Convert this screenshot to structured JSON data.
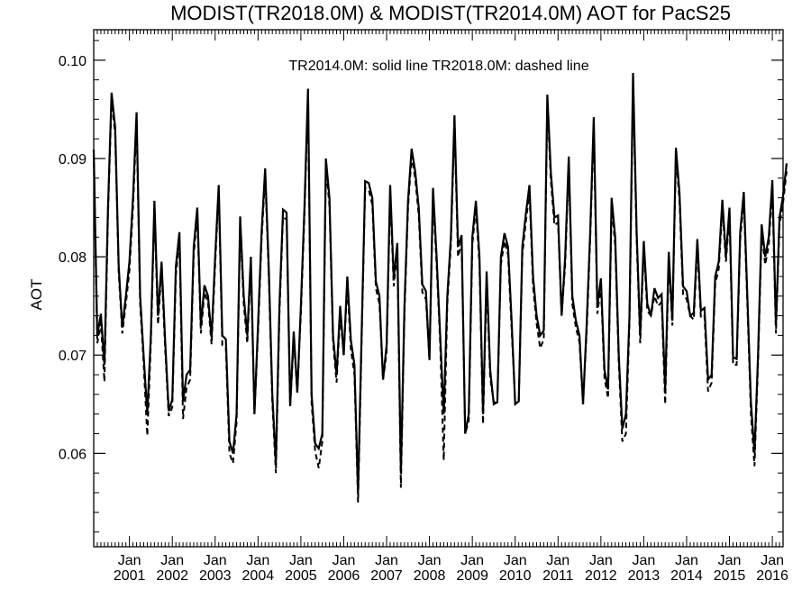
{
  "chart_data": {
    "type": "line",
    "title": "MODIST(TR2018.0M) & MODIST(TR2014.0M)  AOT for PacS25",
    "annotation": "TR2014.0M: solid line   TR2018.0M: dashed line",
    "xlabel": "",
    "ylabel": "AOT",
    "xlim": [
      "2000-03",
      "2016-04"
    ],
    "ylim": [
      0.0505,
      0.1031
    ],
    "yticks": [
      0.06,
      0.07,
      0.08,
      0.09,
      0.1
    ],
    "ytick_labels": [
      "0.06",
      "0.07",
      "0.08",
      "0.09",
      "0.10"
    ],
    "xtick_months": [
      "Jan",
      "Jan",
      "Jan",
      "Jan",
      "Jan",
      "Jan",
      "Jan",
      "Jan",
      "Jan",
      "Jan",
      "Jan",
      "Jan",
      "Jan",
      "Jan",
      "Jan",
      "Jan"
    ],
    "xtick_years": [
      "2001",
      "2002",
      "2003",
      "2004",
      "2005",
      "2006",
      "2007",
      "2008",
      "2009",
      "2010",
      "2011",
      "2012",
      "2013",
      "2014",
      "2015",
      "2016"
    ],
    "grid": false,
    "x_start": "2000-03",
    "series": [
      {
        "name": "TR2014.0M",
        "style": "solid",
        "color": "#000000",
        "values": [
          0.0909,
          0.072,
          0.0742,
          0.069,
          0.085,
          0.0967,
          0.0932,
          0.079,
          0.0728,
          0.076,
          0.0795,
          0.086,
          0.0947,
          0.076,
          0.0698,
          0.064,
          0.072,
          0.0857,
          0.074,
          0.0795,
          0.0715,
          0.0643,
          0.0655,
          0.079,
          0.0825,
          0.0653,
          0.068,
          0.0685,
          0.081,
          0.085,
          0.073,
          0.0771,
          0.076,
          0.0718,
          0.08,
          0.0873,
          0.072,
          0.0716,
          0.0612,
          0.06,
          0.064,
          0.0841,
          0.076,
          0.072,
          0.08,
          0.064,
          0.073,
          0.0825,
          0.089,
          0.079,
          0.066,
          0.059,
          0.075,
          0.0848,
          0.0845,
          0.0648,
          0.0724,
          0.0662,
          0.075,
          0.085,
          0.0971,
          0.066,
          0.061,
          0.0605,
          0.062,
          0.09,
          0.086,
          0.072,
          0.068,
          0.075,
          0.07,
          0.078,
          0.0715,
          0.069,
          0.056,
          0.072,
          0.0877,
          0.0875,
          0.086,
          0.0775,
          0.076,
          0.0675,
          0.071,
          0.0873,
          0.0778,
          0.0814,
          0.058,
          0.075,
          0.0857,
          0.091,
          0.0887,
          0.085,
          0.0772,
          0.0765,
          0.0695,
          0.087,
          0.08,
          0.072,
          0.064,
          0.076,
          0.082,
          0.0944,
          0.081,
          0.0822,
          0.062,
          0.064,
          0.082,
          0.0857,
          0.08,
          0.064,
          0.0785,
          0.0685,
          0.065,
          0.0652,
          0.08,
          0.0824,
          0.081,
          0.0735,
          0.065,
          0.0653,
          0.081,
          0.0844,
          0.0873,
          0.078,
          0.074,
          0.072,
          0.0725,
          0.0965,
          0.0885,
          0.084,
          0.0842,
          0.074,
          0.08,
          0.0902,
          0.076,
          0.0735,
          0.072,
          0.065,
          0.073,
          0.0825,
          0.0942,
          0.075,
          0.0778,
          0.0685,
          0.0665,
          0.086,
          0.082,
          0.07,
          0.0625,
          0.064,
          0.074,
          0.0987,
          0.0826,
          0.072,
          0.0816,
          0.0752,
          0.074,
          0.0768,
          0.0758,
          0.0762,
          0.0665,
          0.0805,
          0.0735,
          0.0911,
          0.0865,
          0.077,
          0.0765,
          0.074,
          0.0743,
          0.0818,
          0.0745,
          0.0748,
          0.0675,
          0.068,
          0.078,
          0.0795,
          0.0858,
          0.08,
          0.085,
          0.0698,
          0.0696,
          0.0825,
          0.0866,
          0.076,
          0.0652,
          0.06,
          0.07,
          0.0833,
          0.08,
          0.082,
          0.0878,
          0.073,
          0.084,
          0.0862,
          0.0895
        ]
      },
      {
        "name": "TR2018.0M",
        "style": "dashed",
        "color": "#000000",
        "values": [
          0.0905,
          0.0712,
          0.0733,
          0.0673,
          0.0843,
          0.096,
          0.0925,
          0.0783,
          0.0722,
          0.0752,
          0.0786,
          0.085,
          0.0938,
          0.0752,
          0.069,
          0.0618,
          0.0712,
          0.0848,
          0.0731,
          0.0788,
          0.0706,
          0.0638,
          0.0647,
          0.0781,
          0.0818,
          0.0635,
          0.0667,
          0.0675,
          0.0802,
          0.0843,
          0.0722,
          0.0764,
          0.0753,
          0.0711,
          0.0792,
          0.0866,
          0.071,
          0.0708,
          0.06,
          0.059,
          0.0632,
          0.0833,
          0.0752,
          0.0712,
          0.0792,
          0.064,
          0.0722,
          0.0818,
          0.0882,
          0.0782,
          0.0652,
          0.058,
          0.0742,
          0.084,
          0.0838,
          0.0648,
          0.0716,
          0.0662,
          0.0742,
          0.0842,
          0.0963,
          0.0651,
          0.0602,
          0.0585,
          0.0612,
          0.0892,
          0.0852,
          0.0713,
          0.0672,
          0.0742,
          0.07,
          0.0772,
          0.0706,
          0.068,
          0.055,
          0.0713,
          0.087,
          0.0868,
          0.0853,
          0.0768,
          0.0752,
          0.0675,
          0.0702,
          0.0865,
          0.077,
          0.0806,
          0.0565,
          0.0742,
          0.085,
          0.0902,
          0.088,
          0.0842,
          0.0764,
          0.0757,
          0.0695,
          0.0862,
          0.0792,
          0.0712,
          0.0593,
          0.0752,
          0.0812,
          0.0935,
          0.08,
          0.0815,
          0.062,
          0.0633,
          0.0812,
          0.085,
          0.0792,
          0.063,
          0.0776,
          0.0677,
          0.0652,
          0.0652,
          0.0792,
          0.0816,
          0.0802,
          0.0727,
          0.0652,
          0.0653,
          0.0802,
          0.0836,
          0.0866,
          0.077,
          0.0732,
          0.0707,
          0.0716,
          0.0957,
          0.0877,
          0.0832,
          0.0835,
          0.074,
          0.0792,
          0.0894,
          0.0752,
          0.0728,
          0.0713,
          0.065,
          0.0722,
          0.0818,
          0.0934,
          0.0742,
          0.077,
          0.0677,
          0.0656,
          0.0852,
          0.0812,
          0.0692,
          0.0612,
          0.062,
          0.0732,
          0.0978,
          0.0818,
          0.0712,
          0.0808,
          0.0745,
          0.074,
          0.076,
          0.075,
          0.0754,
          0.065,
          0.0797,
          0.073,
          0.0903,
          0.0857,
          0.0762,
          0.0757,
          0.074,
          0.0736,
          0.081,
          0.0738,
          0.074,
          0.0663,
          0.0672,
          0.0772,
          0.0788,
          0.085,
          0.0795,
          0.0842,
          0.069,
          0.069,
          0.0818,
          0.0858,
          0.0752,
          0.064,
          0.0587,
          0.0692,
          0.0825,
          0.0792,
          0.0812,
          0.087,
          0.0722,
          0.0832,
          0.0855,
          0.0887
        ]
      }
    ]
  }
}
